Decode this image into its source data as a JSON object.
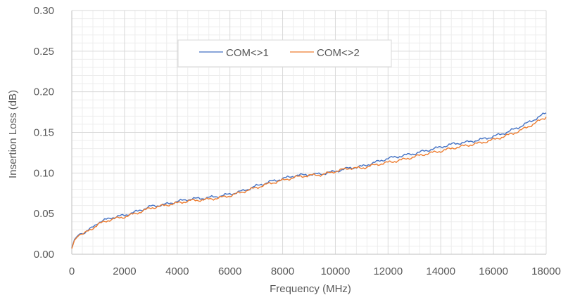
{
  "chart_data": {
    "type": "line",
    "title": "",
    "xlabel": "Frequency (MHz)",
    "ylabel": "Insertion Loss (dB)",
    "xlim": [
      0,
      18000
    ],
    "ylim": [
      0,
      0.3
    ],
    "x_ticks": [
      "0",
      "2000",
      "4000",
      "6000",
      "8000",
      "10000",
      "12000",
      "14000",
      "16000",
      "18000"
    ],
    "y_ticks": [
      "0.00",
      "0.05",
      "0.10",
      "0.15",
      "0.20",
      "0.25",
      "0.30"
    ],
    "grid": true,
    "legend_position": "top-center",
    "series": [
      {
        "name": "COM<>1",
        "color": "#4472C4",
        "points": [
          [
            0,
            0.008
          ],
          [
            100,
            0.018
          ],
          [
            200,
            0.022
          ],
          [
            300,
            0.025
          ],
          [
            500,
            0.027
          ],
          [
            750,
            0.032
          ],
          [
            1000,
            0.039
          ],
          [
            1250,
            0.042
          ],
          [
            1500,
            0.045
          ],
          [
            2000,
            0.048
          ],
          [
            2500,
            0.053
          ],
          [
            3000,
            0.059
          ],
          [
            3500,
            0.061
          ],
          [
            4000,
            0.065
          ],
          [
            4500,
            0.068
          ],
          [
            5000,
            0.069
          ],
          [
            5500,
            0.071
          ],
          [
            6000,
            0.074
          ],
          [
            6500,
            0.078
          ],
          [
            7000,
            0.084
          ],
          [
            7500,
            0.089
          ],
          [
            8000,
            0.093
          ],
          [
            8500,
            0.097
          ],
          [
            9000,
            0.098
          ],
          [
            9500,
            0.099
          ],
          [
            10000,
            0.102
          ],
          [
            10500,
            0.106
          ],
          [
            11000,
            0.108
          ],
          [
            11500,
            0.113
          ],
          [
            12000,
            0.118
          ],
          [
            12500,
            0.121
          ],
          [
            13000,
            0.124
          ],
          [
            13500,
            0.128
          ],
          [
            14000,
            0.132
          ],
          [
            14500,
            0.136
          ],
          [
            15000,
            0.138
          ],
          [
            15500,
            0.141
          ],
          [
            16000,
            0.145
          ],
          [
            16500,
            0.15
          ],
          [
            17000,
            0.157
          ],
          [
            17500,
            0.165
          ],
          [
            18000,
            0.174
          ]
        ]
      },
      {
        "name": "COM<>2",
        "color": "#ED7D31",
        "points": [
          [
            0,
            0.007
          ],
          [
            100,
            0.017
          ],
          [
            200,
            0.021
          ],
          [
            300,
            0.024
          ],
          [
            500,
            0.026
          ],
          [
            750,
            0.031
          ],
          [
            1000,
            0.037
          ],
          [
            1250,
            0.04
          ],
          [
            1500,
            0.043
          ],
          [
            2000,
            0.046
          ],
          [
            2500,
            0.051
          ],
          [
            3000,
            0.057
          ],
          [
            3500,
            0.06
          ],
          [
            4000,
            0.063
          ],
          [
            4500,
            0.066
          ],
          [
            5000,
            0.067
          ],
          [
            5500,
            0.069
          ],
          [
            6000,
            0.072
          ],
          [
            6500,
            0.077
          ],
          [
            7000,
            0.082
          ],
          [
            7500,
            0.087
          ],
          [
            8000,
            0.091
          ],
          [
            8500,
            0.095
          ],
          [
            9000,
            0.097
          ],
          [
            9500,
            0.098
          ],
          [
            10000,
            0.102
          ],
          [
            10500,
            0.106
          ],
          [
            11000,
            0.106
          ],
          [
            11500,
            0.11
          ],
          [
            12000,
            0.113
          ],
          [
            12500,
            0.116
          ],
          [
            13000,
            0.12
          ],
          [
            13500,
            0.124
          ],
          [
            14000,
            0.127
          ],
          [
            14500,
            0.131
          ],
          [
            15000,
            0.134
          ],
          [
            15500,
            0.137
          ],
          [
            16000,
            0.141
          ],
          [
            16500,
            0.146
          ],
          [
            17000,
            0.152
          ],
          [
            17500,
            0.16
          ],
          [
            18000,
            0.169
          ]
        ]
      }
    ]
  },
  "colors": {
    "major_grid": "#D9D9D9",
    "minor_grid": "#EDEDED",
    "axis_line": "#BFBFBF",
    "text": "#595959"
  }
}
